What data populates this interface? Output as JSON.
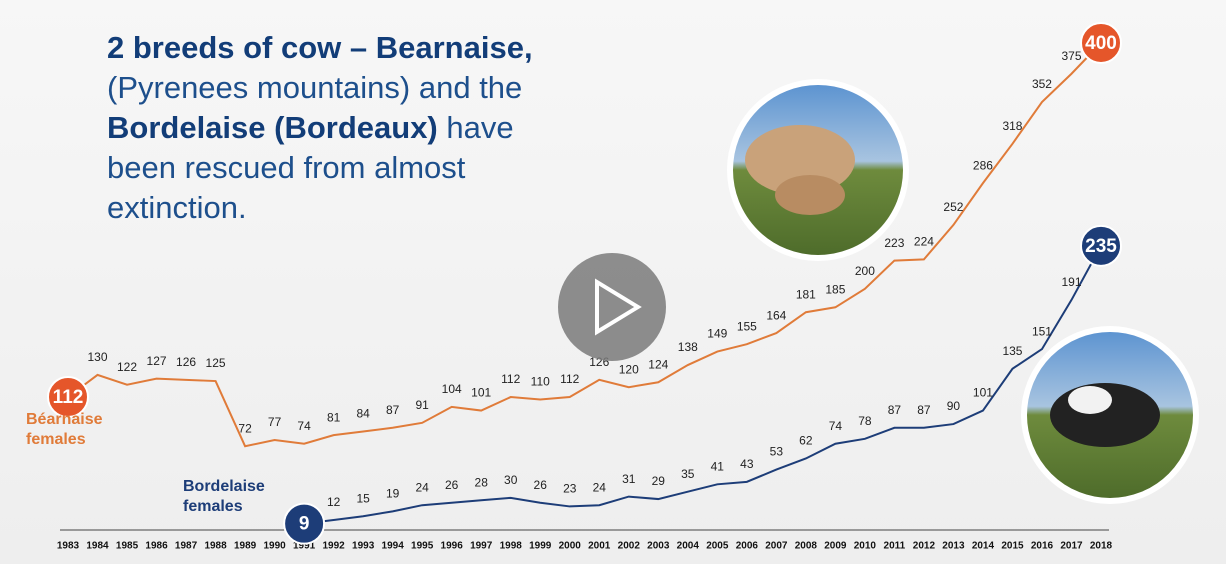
{
  "chart_data": {
    "type": "line",
    "title_parts": [
      "2 breeds of cow – Bearnaise,",
      "(Pyrenees mountains) and the",
      "Bordelaise (Bordeaux)",
      " have",
      "been rescued from almost",
      "extinction."
    ],
    "x": [
      1983,
      1984,
      1985,
      1986,
      1987,
      1988,
      1989,
      1990,
      1991,
      1992,
      1993,
      1994,
      1995,
      1996,
      1997,
      1998,
      1999,
      2000,
      2001,
      2002,
      2003,
      2004,
      2005,
      2006,
      2007,
      2008,
      2009,
      2010,
      2011,
      2012,
      2013,
      2014,
      2015,
      2016,
      2017,
      2018
    ],
    "series": [
      {
        "name": "Béarnaise females",
        "color": "#e07b39",
        "marker_color": "#e5562a",
        "values": [
          112,
          130,
          122,
          127,
          126,
          125,
          72,
          77,
          74,
          81,
          84,
          87,
          91,
          104,
          101,
          112,
          110,
          112,
          126,
          120,
          124,
          138,
          149,
          155,
          164,
          181,
          185,
          200,
          223,
          224,
          252,
          286,
          318,
          352,
          375,
          400
        ]
      },
      {
        "name": "Bordelaise females",
        "color": "#1d3d78",
        "marker_color": "#1d3d78",
        "values": [
          null,
          null,
          null,
          null,
          null,
          null,
          null,
          null,
          9,
          12,
          15,
          19,
          24,
          26,
          28,
          30,
          26,
          23,
          24,
          31,
          29,
          35,
          41,
          43,
          53,
          62,
          74,
          78,
          87,
          87,
          90,
          101,
          135,
          151,
          191,
          235
        ]
      }
    ],
    "xlim": [
      1983,
      2018
    ],
    "ylim": [
      -10,
      400
    ]
  }
}
